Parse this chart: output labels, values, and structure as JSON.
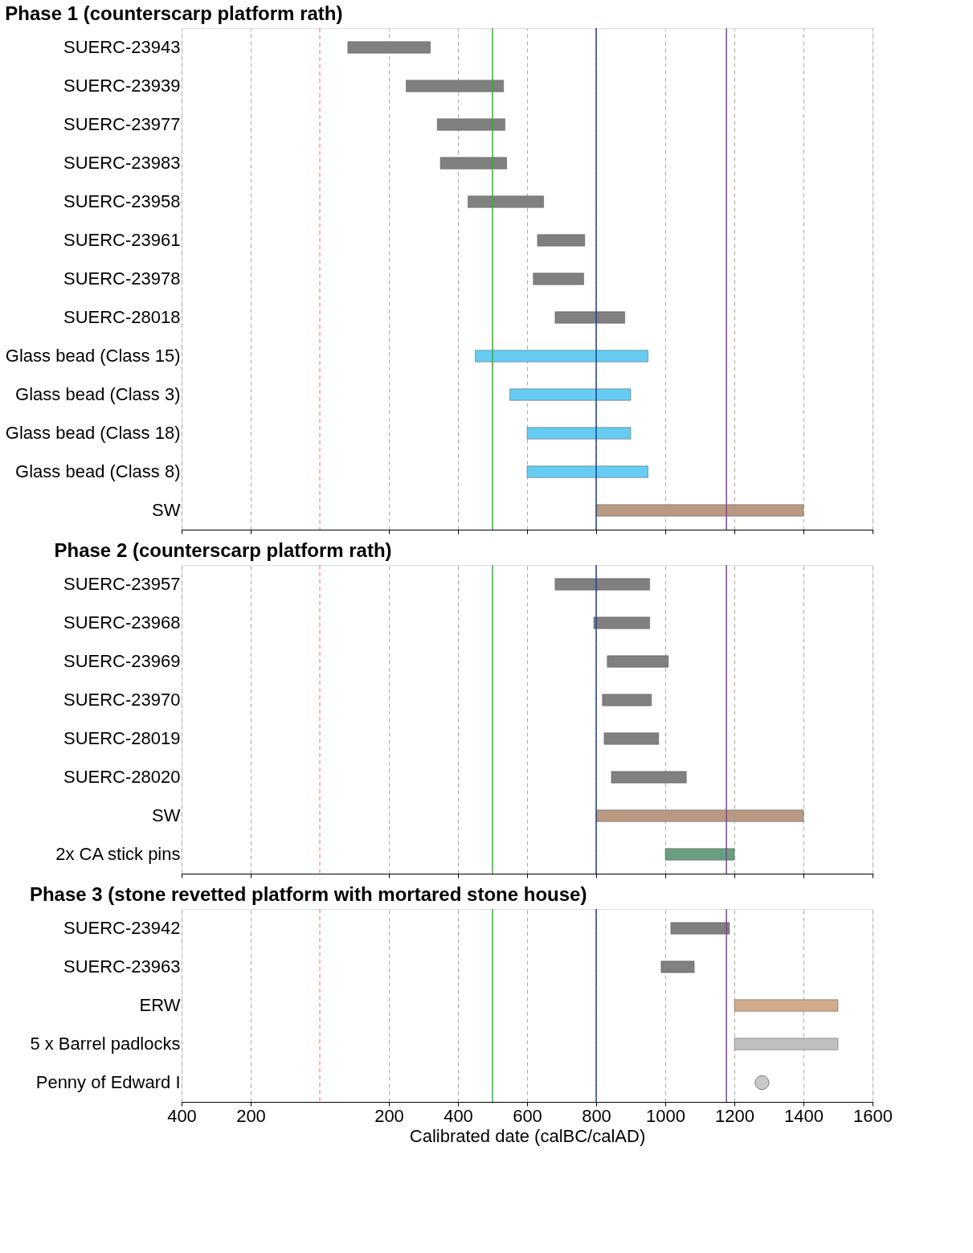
{
  "chart_data": [
    {
      "type": "bar",
      "orientation": "horizontal",
      "title": "Phase 1 (counterscarp platform rath)",
      "tick_labels": "y",
      "grid": "x",
      "categories": [
        "SUERC-23943",
        "SUERC-23939",
        "SUERC-23977",
        "SUERC-23983",
        "SUERC-23958",
        "SUERC-23961",
        "SUERC-23978",
        "SUERC-28018",
        "Glass bead (Class 15)",
        "Glass bead (Class 3)",
        "Glass bead (Class 18)",
        "Glass bead (Class 8)",
        "SW"
      ],
      "base": [
        81,
        250,
        340,
        349,
        429,
        630,
        618,
        681,
        450,
        550,
        600,
        600,
        800
      ],
      "values": [
        239,
        282,
        196,
        192,
        219,
        137,
        146,
        202,
        500,
        350,
        300,
        350,
        600
      ],
      "colors": [
        "#808080",
        "#808080",
        "#808080",
        "#808080",
        "#808080",
        "#808080",
        "#808080",
        "#808080",
        "#66ccf2",
        "#66ccf2",
        "#66ccf2",
        "#66ccf2",
        "#b89a82"
      ],
      "xlim": [
        -400,
        1600
      ],
      "xticks": [
        -400,
        -200,
        200,
        400,
        600,
        800,
        1000,
        1200,
        1400,
        1600
      ],
      "ref_lines": [
        {
          "axis": "x",
          "value": 0,
          "color": "#ff6666",
          "line_style": "dashed"
        },
        {
          "axis": "x",
          "value": 500,
          "color": "#33b033"
        },
        {
          "axis": "x",
          "value": 800,
          "color": "#1f3f9f"
        },
        {
          "axis": "x",
          "value": 1177,
          "color": "#8040a0"
        }
      ]
    },
    {
      "type": "bar",
      "orientation": "horizontal",
      "title": "Phase 2 (counterscarp platform rath)",
      "tick_labels": "y",
      "grid": "x",
      "categories": [
        "SUERC-23957",
        "SUERC-23968",
        "SUERC-23969",
        "SUERC-23970",
        "SUERC-28019",
        "SUERC-28020",
        "SW",
        "2x CA stick pins"
      ],
      "base": [
        681,
        793,
        832,
        818,
        823,
        844,
        800,
        1000
      ],
      "values": [
        274,
        162,
        177,
        142,
        158,
        217,
        600,
        200
      ],
      "colors": [
        "#808080",
        "#808080",
        "#808080",
        "#808080",
        "#808080",
        "#808080",
        "#b89a82",
        "#6a9e80"
      ],
      "xlim": [
        -400,
        1600
      ],
      "xticks": [
        -400,
        -200,
        200,
        400,
        600,
        800,
        1000,
        1200,
        1400,
        1600
      ],
      "ref_lines": [
        {
          "axis": "x",
          "value": 0,
          "color": "#ff6666",
          "line_style": "dashed"
        },
        {
          "axis": "x",
          "value": 500,
          "color": "#33b033"
        },
        {
          "axis": "x",
          "value": 800,
          "color": "#1f3f9f"
        },
        {
          "axis": "x",
          "value": 1177,
          "color": "#8040a0"
        }
      ]
    },
    {
      "type": "bar",
      "orientation": "horizontal",
      "title": "Phase 3 (stone revetted platform with mortared stone house)",
      "xlabel": "Calibrated date (calBC/calAD)",
      "grid": "x",
      "categories": [
        "SUERC-23942",
        "SUERC-23963",
        "ERW",
        "5 x Barrel padlocks",
        "Penny of Edward I"
      ],
      "series": [
        {
          "type": "bar",
          "base": [
            1016,
            988,
            1200,
            1200,
            null
          ],
          "values": [
            170,
            96,
            300,
            300,
            null
          ],
          "colors": [
            "#808080",
            "#808080",
            "#d2aa8c",
            "#c0c0c0",
            "#c0c0c0"
          ]
        },
        {
          "type": "scatter",
          "marker": "circle",
          "color": "#c8c8c8",
          "values": [
            null,
            null,
            null,
            null,
            1280
          ]
        }
      ],
      "xlim": [
        -400,
        1600
      ],
      "xticks": [
        {
          "value": -400,
          "label": "400"
        },
        {
          "value": -200,
          "label": "200"
        },
        200,
        400,
        600,
        800,
        1000,
        1200,
        1400,
        1600
      ],
      "ref_lines": [
        {
          "axis": "x",
          "value": 0,
          "color": "#ff6666",
          "line_style": "dashed"
        },
        {
          "axis": "x",
          "value": 500,
          "color": "#33b033"
        },
        {
          "axis": "x",
          "value": 800,
          "color": "#1f3f9f"
        },
        {
          "axis": "x",
          "value": 1177,
          "color": "#8040a0"
        }
      ]
    }
  ]
}
